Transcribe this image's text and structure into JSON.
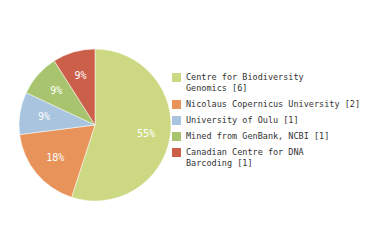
{
  "chart_data": {
    "type": "pie",
    "categories": [
      "Centre for Biodiversity\nGenomics [6]",
      "Nicolaus Copernicus University [2]",
      "University of Oulu [1]",
      "Mined from GenBank, NCBI [1]",
      "Canadian Centre for DNA\nBarcoding [1]"
    ],
    "values": [
      55,
      18,
      9,
      9,
      9
    ],
    "value_labels": [
      "55%",
      "18%",
      "9%",
      "9%",
      "9%"
    ],
    "colors": [
      "#cdd882",
      "#e8935a",
      "#a8c4df",
      "#a8c46e",
      "#cc5f4a"
    ],
    "data_labels": true,
    "legend": "right"
  }
}
